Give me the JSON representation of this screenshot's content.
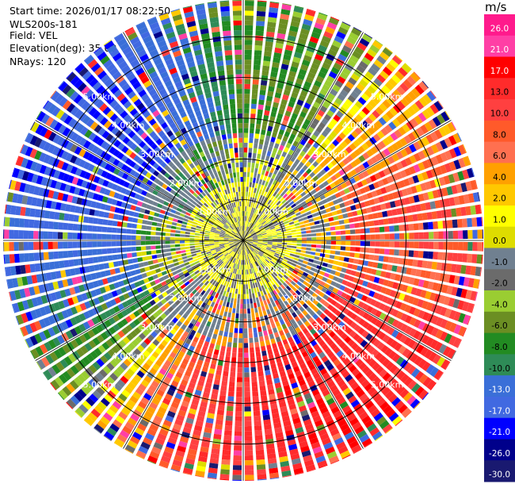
{
  "header": {
    "start_time": "Start time: 2026/01/17 08:22:50",
    "device": "WLS200s-181",
    "field": "Field: VEL",
    "elevation": "Elevation(deg): 35.00",
    "nrays": "NRays: 120"
  },
  "colorbar": {
    "unit": "m/s",
    "ticks": [
      "26.0",
      "21.0",
      "17.0",
      "13.0",
      "10.0",
      "8.0",
      "6.0",
      "4.0",
      "2.0",
      "1.0",
      "0.0",
      "-1.0",
      "-2.0",
      "-4.0",
      "-6.0",
      "-8.0",
      "-10.0",
      "-13.0",
      "-17.0",
      "-21.0",
      "-26.0",
      "-30.0"
    ],
    "colors": [
      "#ff1a8c",
      "#ff3fa5",
      "#ff0000",
      "#ff2b2b",
      "#ff4040",
      "#ff5a2a",
      "#ff7050",
      "#ffa000",
      "#ffc800",
      "#ffff00",
      "#dedc00",
      "#708090",
      "#6b6b6b",
      "#9acd32",
      "#6b8e23",
      "#228b22",
      "#2e8b57",
      "#3a6fd8",
      "#4169e1",
      "#0000ff",
      "#00008b",
      "#191970"
    ]
  },
  "chart_data": {
    "type": "ppi_polar",
    "field": "VEL",
    "unit": "m/s",
    "nrays": 120,
    "elevation_deg": 35.0,
    "range_rings_km": [
      1,
      2,
      3,
      4,
      5
    ],
    "ring_labels": [
      "1.00km",
      "2.00km",
      "3.00km",
      "4.00km",
      "5.00km"
    ],
    "max_range_km": 5.9,
    "color_scale_min": -30.0,
    "color_scale_max": 26.0,
    "dominant_patterns": [
      {
        "azimuth_deg": [
          250,
          340
        ],
        "range_km": [
          2.5,
          5.9
        ],
        "value_ms": -17.0
      },
      {
        "azimuth_deg": [
          20,
          60
        ],
        "range_km": [
          3.0,
          5.9
        ],
        "value_ms": -6.0
      },
      {
        "azimuth_deg": [
          70,
          110
        ],
        "range_km": [
          3.0,
          5.9
        ],
        "value_ms": 8.0
      },
      {
        "azimuth_deg": [
          120,
          220
        ],
        "range_km": [
          2.5,
          5.9
        ],
        "value_ms": 13.0
      },
      {
        "azimuth_deg": [
          0,
          360
        ],
        "range_km": [
          0.3,
          1.5
        ],
        "value_ms": 1.0
      }
    ]
  }
}
